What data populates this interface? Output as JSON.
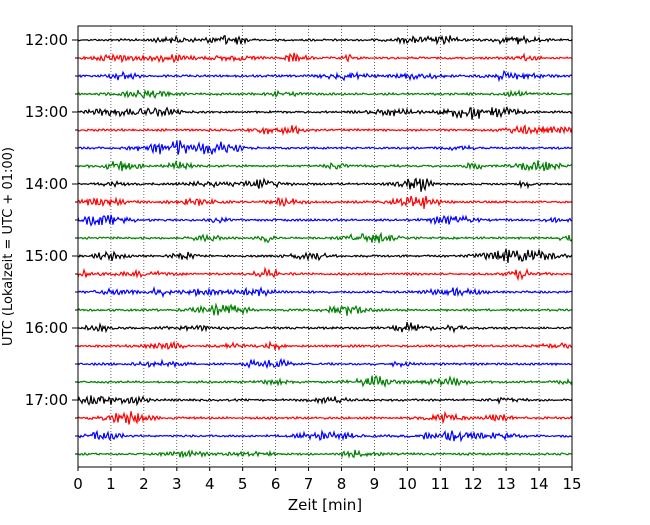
{
  "chart_data": {
    "type": "line",
    "title": "",
    "xlabel": "Zeit  [min]",
    "ylabel": "UTC (Lokalzeit = UTC + 01:00)",
    "xlim": [
      0,
      15
    ],
    "x_ticks": [
      "0",
      "1",
      "2",
      "3",
      "4",
      "5",
      "6",
      "7",
      "8",
      "9",
      "10",
      "11",
      "12",
      "13",
      "14",
      "15"
    ],
    "y_tick_labels": [
      "12:00",
      "13:00",
      "14:00",
      "15:00",
      "16:00",
      "17:00"
    ],
    "vertical_grid": "dotted",
    "trace_colors": [
      "#000000",
      "#ff0000",
      "#0000ff",
      "#008000"
    ],
    "row_start_times": [
      "12:00",
      "12:15",
      "12:30",
      "12:45",
      "13:00",
      "13:15",
      "13:30",
      "13:45",
      "14:00",
      "14:15",
      "14:30",
      "14:45",
      "15:00",
      "15:15",
      "15:30",
      "15:45",
      "16:00",
      "16:15",
      "16:30",
      "16:45",
      "17:00",
      "17:15",
      "17:30",
      "17:45"
    ],
    "row_minutes": 15
  }
}
